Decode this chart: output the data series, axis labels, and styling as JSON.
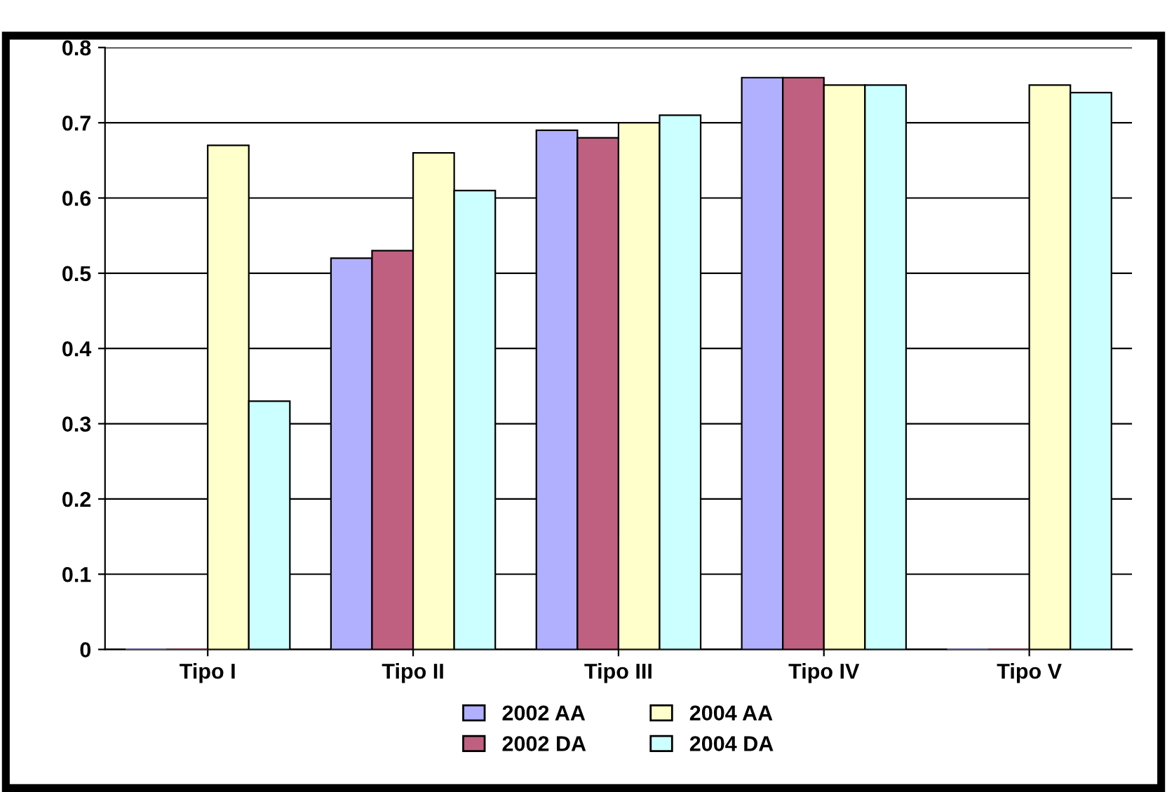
{
  "chart_data": {
    "type": "bar",
    "categories": [
      "Tipo I",
      "Tipo II",
      "Tipo III",
      "Tipo IV",
      "Tipo V"
    ],
    "series": [
      {
        "name": "2002 AA",
        "color": "#b0b0ff",
        "values": [
          0,
          0.52,
          0.69,
          0.76,
          0
        ]
      },
      {
        "name": "2002 DA",
        "color": "#c06080",
        "values": [
          0,
          0.53,
          0.68,
          0.76,
          0
        ]
      },
      {
        "name": "2004 AA",
        "color": "#ffffcc",
        "values": [
          0.67,
          0.66,
          0.7,
          0.75,
          0.75
        ]
      },
      {
        "name": "2004 DA",
        "color": "#ccffff",
        "values": [
          0.33,
          0.61,
          0.71,
          0.75,
          0.74
        ]
      }
    ],
    "ylim": [
      0,
      0.8
    ],
    "yticks": [
      0,
      0.1,
      0.2,
      0.3,
      0.4,
      0.5,
      0.6,
      0.7,
      0.8
    ],
    "grid": "y",
    "legend": "bottom"
  }
}
